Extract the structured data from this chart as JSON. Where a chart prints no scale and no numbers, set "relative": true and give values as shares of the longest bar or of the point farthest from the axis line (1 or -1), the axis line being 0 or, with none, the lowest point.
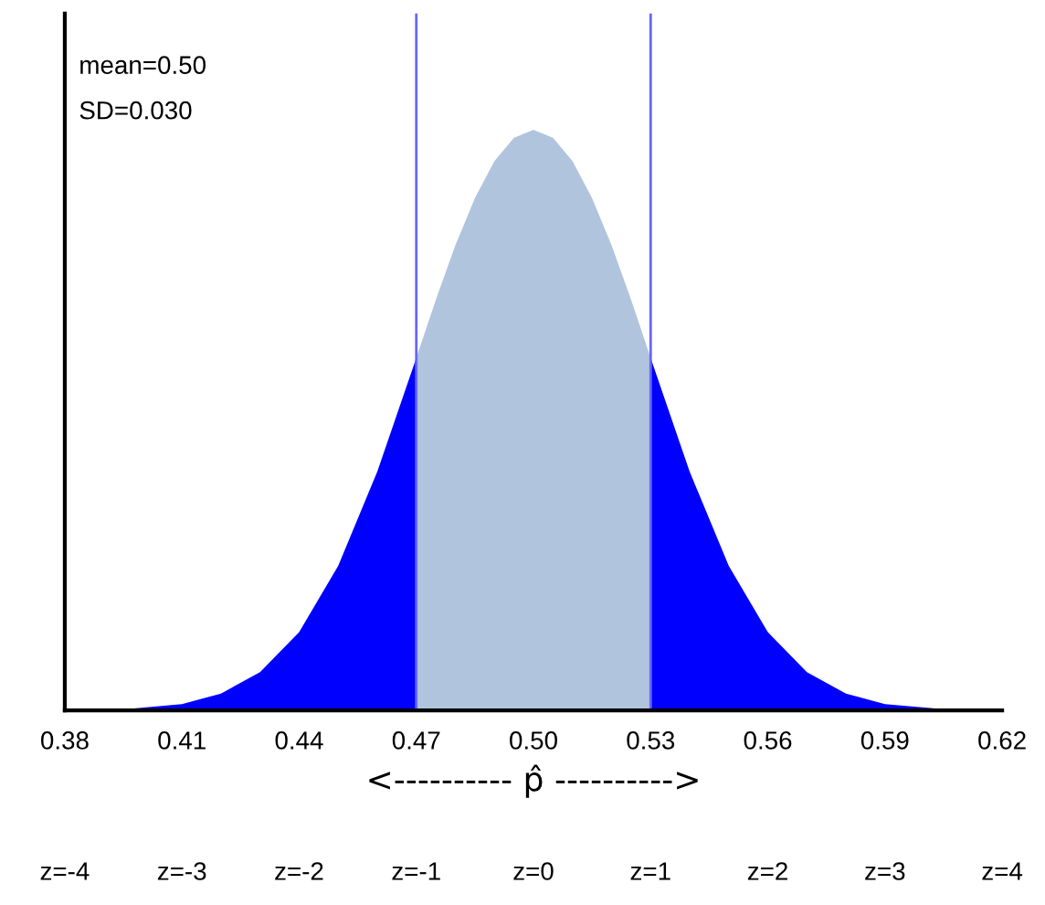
{
  "chart_data": {
    "type": "area",
    "relative": true,
    "xlabel": "<---------- p̂ ---------->",
    "annotations": [
      "mean=0.50",
      "SD=0.030"
    ],
    "series": [
      {
        "color": "#0000ff",
        "x": [
          0.38,
          0.395,
          0.41,
          0.42,
          0.43,
          0.44,
          0.45,
          0.46,
          0.47
        ],
        "values": [
          0,
          0.002,
          0.011,
          0.029,
          0.066,
          0.135,
          0.249,
          0.411,
          0.607
        ]
      },
      {
        "color": "#b0c4de",
        "x": [
          0.47,
          0.475,
          0.48,
          0.485,
          0.49,
          0.495,
          0.5,
          0.505,
          0.51,
          0.515,
          0.52,
          0.525,
          0.53
        ],
        "values": [
          0.607,
          0.707,
          0.801,
          0.882,
          0.946,
          0.986,
          1,
          0.986,
          0.946,
          0.882,
          0.801,
          0.707,
          0.607
        ]
      },
      {
        "color": "#0000ff",
        "x": [
          0.53,
          0.54,
          0.55,
          0.56,
          0.57,
          0.58,
          0.59,
          0.605,
          0.62
        ],
        "values": [
          0.607,
          0.411,
          0.249,
          0.135,
          0.066,
          0.029,
          0.011,
          0.002,
          0
        ]
      }
    ],
    "ref_lines": [
      {
        "axis": "x",
        "value": 0.47,
        "color": "#6666ff"
      },
      {
        "axis": "x",
        "value": 0.53,
        "color": "#6666ff"
      }
    ],
    "xlim": [
      0.38,
      0.62
    ],
    "xticks": [
      {
        "value": 0.38,
        "label": "0.38"
      },
      {
        "value": 0.41,
        "label": "0.41"
      },
      {
        "value": 0.44,
        "label": "0.44"
      },
      {
        "value": 0.47,
        "label": "0.47"
      },
      {
        "value": 0.5,
        "label": "0.50"
      },
      {
        "value": 0.53,
        "label": "0.53"
      },
      {
        "value": 0.56,
        "label": "0.56"
      },
      {
        "value": 0.59,
        "label": "0.59"
      },
      {
        "value": 0.62,
        "label": "0.62"
      }
    ],
    "x2lim": [
      -4,
      4
    ],
    "x2ticks": [
      {
        "value": -4,
        "label": "z=-4"
      },
      {
        "value": -3,
        "label": "z=-3"
      },
      {
        "value": -2,
        "label": "z=-2"
      },
      {
        "value": -1,
        "label": "z=-1"
      },
      {
        "value": 0,
        "label": "z=0"
      },
      {
        "value": 1,
        "label": "z=1"
      },
      {
        "value": 2,
        "label": "z=2"
      },
      {
        "value": 3,
        "label": "z=3"
      },
      {
        "value": 4,
        "label": "z=4"
      }
    ],
    "grid": false,
    "legend": false
  }
}
